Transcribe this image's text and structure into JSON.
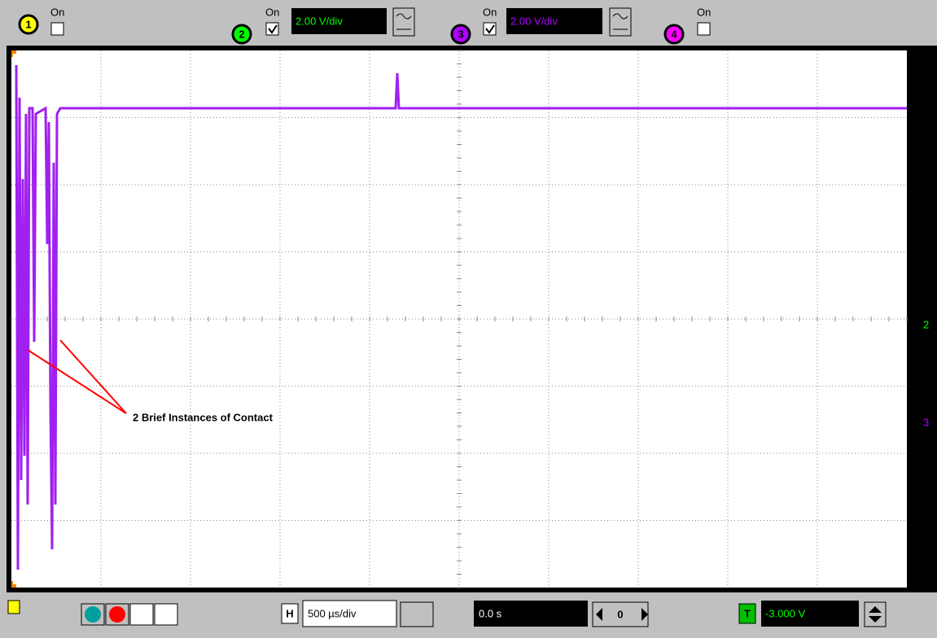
{
  "channels": [
    {
      "number": "1",
      "state": "On"
    },
    {
      "number": "2",
      "state": "On",
      "scale": "2.00 V/div"
    },
    {
      "number": "3",
      "state": "On",
      "scale": "2.00 V/div"
    },
    {
      "number": "4",
      "state": "On"
    }
  ],
  "annotation": "2 Brief Instances of Contact",
  "timebase": {
    "label": "H",
    "scale": "500 µs/div",
    "position": "0.0 s",
    "step": "0"
  },
  "trigger": {
    "label": "T",
    "level": "-3.000 V"
  },
  "markers": [
    "2",
    "3"
  ]
}
